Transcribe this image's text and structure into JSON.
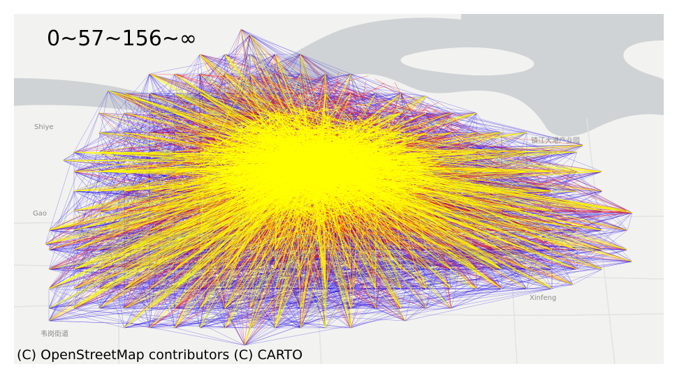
{
  "map": {
    "legend": "0~57~156~∞",
    "attribution": "(C) OpenStreetMap contributors (C) CARTO",
    "place_labels": [
      "Shiye",
      "Gao",
      "Xinfeng",
      "韦岗街道",
      "镇江大港产业园"
    ]
  },
  "colors": {
    "land": "#f2f2f0",
    "water": "#cfd3d5",
    "roads": "#e3e3e3",
    "band_low": "#1a00e6",
    "band_mid": "#ff1010",
    "band_high": "#ffff00"
  },
  "flow_classes": [
    {
      "range": "0~57",
      "color": "blue"
    },
    {
      "range": "57~156",
      "color": "red"
    },
    {
      "range": "156~∞",
      "color": "yellow"
    }
  ]
}
